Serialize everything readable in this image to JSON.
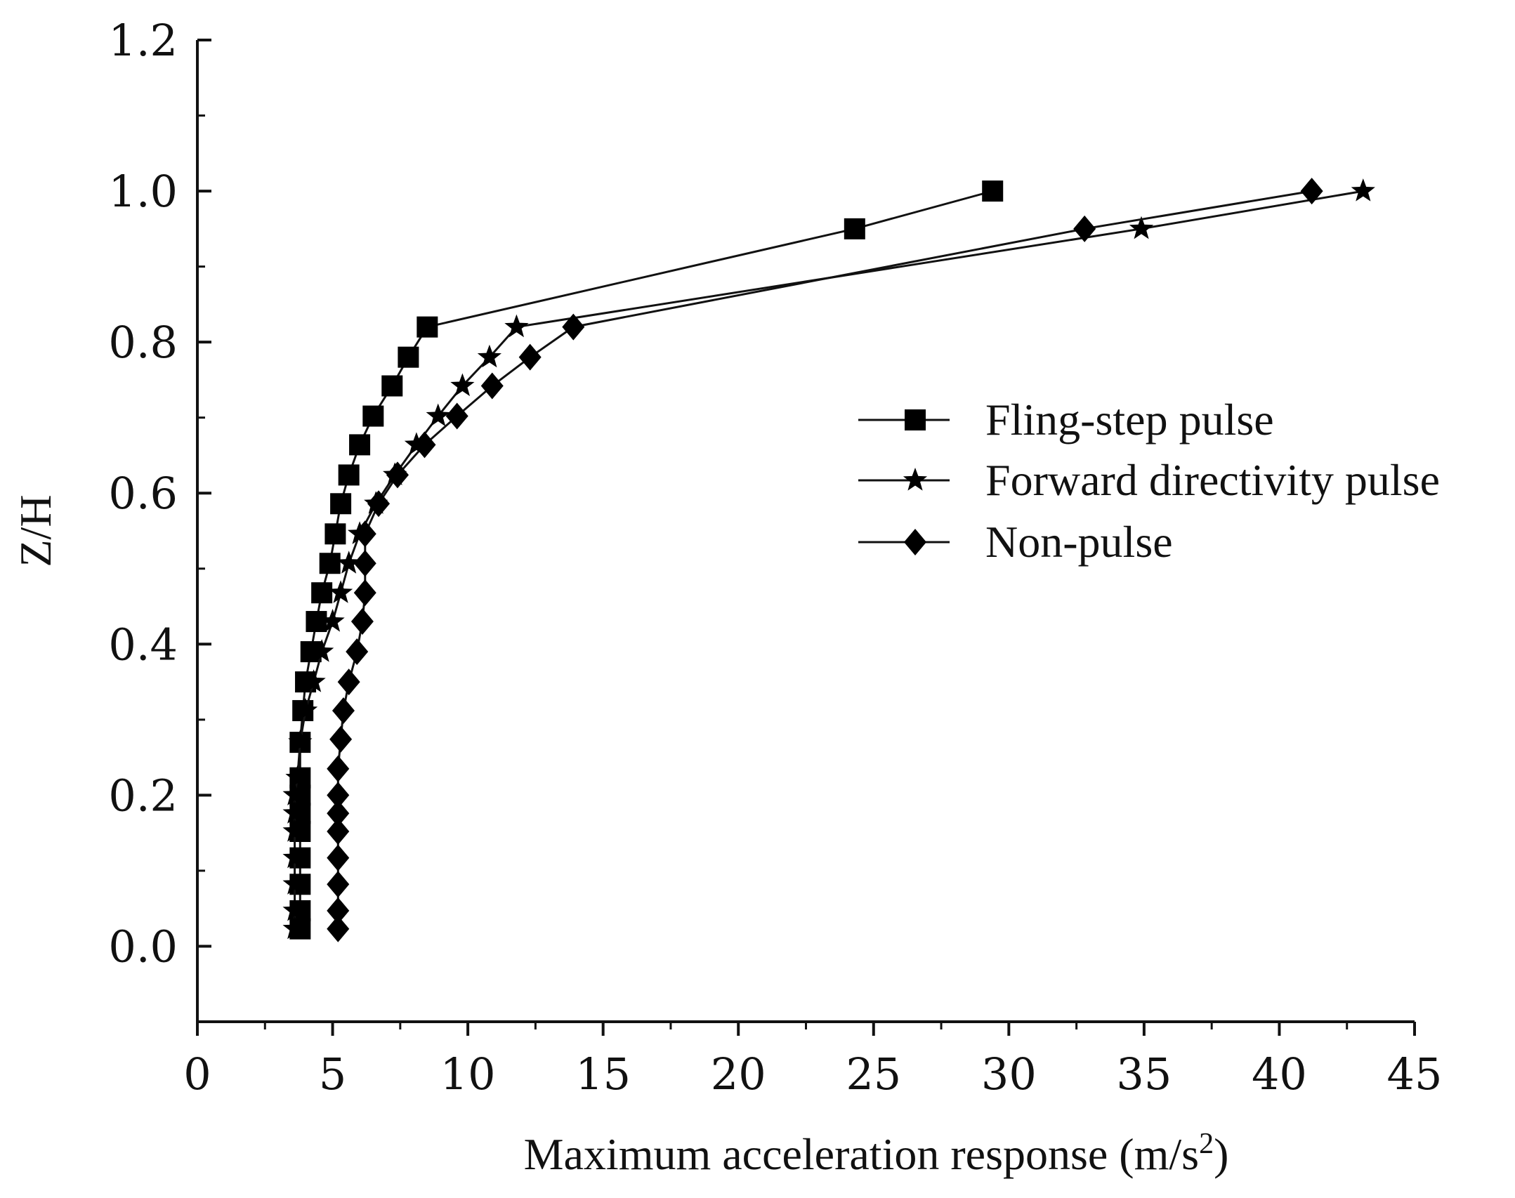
{
  "chart_data": {
    "type": "line",
    "xlabel": "Maximum acceleration response (m/s",
    "xlabel_sup": "2",
    "xlabel_end": ")",
    "ylabel": "Z/H",
    "xlim": [
      0,
      45
    ],
    "ylim": [
      -0.1,
      1.2
    ],
    "x_ticks": [
      "0",
      "5",
      "10",
      "15",
      "20",
      "25",
      "30",
      "35",
      "40",
      "45"
    ],
    "y_ticks": [
      "0.0",
      "0.2",
      "0.4",
      "0.6",
      "0.8",
      "1.0",
      "1.2"
    ],
    "legend_position": "right",
    "series": [
      {
        "name": "Fling-step pulse",
        "marker": "square",
        "points": [
          [
            3.8,
            0.023
          ],
          [
            3.8,
            0.047
          ],
          [
            3.8,
            0.082
          ],
          [
            3.8,
            0.117
          ],
          [
            3.8,
            0.152
          ],
          [
            3.8,
            0.176
          ],
          [
            3.8,
            0.2
          ],
          [
            3.8,
            0.223
          ],
          [
            3.8,
            0.27
          ],
          [
            3.9,
            0.312
          ],
          [
            4.0,
            0.35
          ],
          [
            4.2,
            0.39
          ],
          [
            4.4,
            0.43
          ],
          [
            4.6,
            0.468
          ],
          [
            4.9,
            0.507
          ],
          [
            5.1,
            0.546
          ],
          [
            5.3,
            0.586
          ],
          [
            5.6,
            0.624
          ],
          [
            6.0,
            0.664
          ],
          [
            6.5,
            0.702
          ],
          [
            7.2,
            0.742
          ],
          [
            7.8,
            0.78
          ],
          [
            8.5,
            0.82
          ],
          [
            24.3,
            0.95
          ],
          [
            29.4,
            1.0
          ]
        ]
      },
      {
        "name": "Forward directivity pulse",
        "marker": "star",
        "points": [
          [
            3.6,
            0.023
          ],
          [
            3.6,
            0.047
          ],
          [
            3.6,
            0.082
          ],
          [
            3.6,
            0.117
          ],
          [
            3.6,
            0.152
          ],
          [
            3.6,
            0.176
          ],
          [
            3.6,
            0.2
          ],
          [
            3.7,
            0.223
          ],
          [
            3.8,
            0.27
          ],
          [
            4.0,
            0.312
          ],
          [
            4.3,
            0.35
          ],
          [
            4.6,
            0.39
          ],
          [
            5.0,
            0.43
          ],
          [
            5.3,
            0.468
          ],
          [
            5.6,
            0.507
          ],
          [
            6.0,
            0.546
          ],
          [
            6.6,
            0.586
          ],
          [
            7.3,
            0.624
          ],
          [
            8.1,
            0.664
          ],
          [
            8.9,
            0.702
          ],
          [
            9.8,
            0.742
          ],
          [
            10.8,
            0.78
          ],
          [
            11.8,
            0.82
          ],
          [
            34.9,
            0.95
          ],
          [
            43.1,
            1.0
          ]
        ]
      },
      {
        "name": "Non-pulse",
        "marker": "diamond",
        "points": [
          [
            5.2,
            0.023
          ],
          [
            5.2,
            0.047
          ],
          [
            5.2,
            0.082
          ],
          [
            5.2,
            0.117
          ],
          [
            5.2,
            0.152
          ],
          [
            5.2,
            0.176
          ],
          [
            5.2,
            0.2
          ],
          [
            5.2,
            0.235
          ],
          [
            5.3,
            0.274
          ],
          [
            5.4,
            0.312
          ],
          [
            5.6,
            0.35
          ],
          [
            5.9,
            0.39
          ],
          [
            6.1,
            0.43
          ],
          [
            6.2,
            0.468
          ],
          [
            6.2,
            0.507
          ],
          [
            6.2,
            0.546
          ],
          [
            6.7,
            0.586
          ],
          [
            7.4,
            0.624
          ],
          [
            8.4,
            0.664
          ],
          [
            9.6,
            0.702
          ],
          [
            10.9,
            0.742
          ],
          [
            12.3,
            0.78
          ],
          [
            13.9,
            0.82
          ],
          [
            32.8,
            0.95
          ],
          [
            41.2,
            1.0
          ]
        ]
      }
    ]
  }
}
